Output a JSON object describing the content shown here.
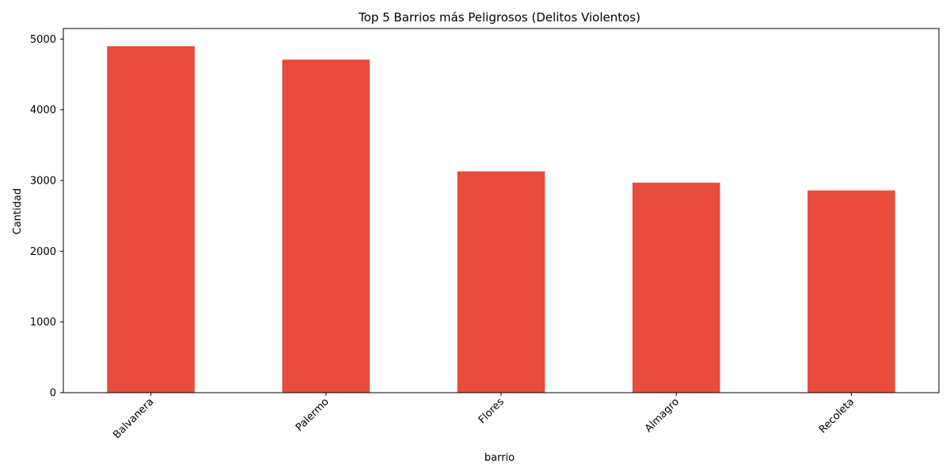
{
  "colors": {
    "bar": "#e74c3c",
    "axis": "#000000",
    "background": "#ffffff"
  },
  "chart_data": {
    "type": "bar",
    "title": "Top 5 Barrios más Peligrosos (Delitos Violentos)",
    "xlabel": "barrio",
    "ylabel": "Cantidad",
    "categories": [
      "Balvanera",
      "Palermo",
      "Flores",
      "Almagro",
      "Recoleta"
    ],
    "values": [
      4900,
      4710,
      3130,
      2970,
      2860
    ],
    "ylim": [
      0,
      5150
    ],
    "yticks": [
      0,
      1000,
      2000,
      3000,
      4000,
      5000
    ],
    "ytick_labels": [
      "0",
      "1000",
      "2000",
      "3000",
      "4000",
      "5000"
    ],
    "grid": false,
    "legend": "none"
  }
}
